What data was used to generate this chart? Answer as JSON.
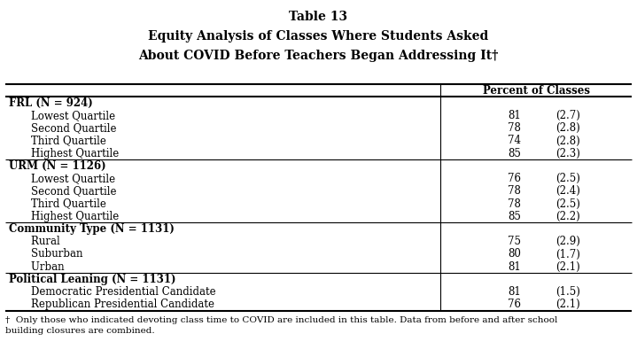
{
  "title_line1": "Table 13",
  "title_line2": "Equity Analysis of Classes Where Students Asked",
  "title_line3": "About COVID Before Teachers Began Addressing It†",
  "col_header": "Percent of Classes",
  "footnote": "†  Only those who indicated devoting class time to COVID are included in this table. Data from before and after school\nbuilding closures are combined.",
  "sections": [
    {
      "header": "FRL (N = 924)",
      "rows": [
        {
          "label": "    Lowest Quartile",
          "value": "81",
          "se": "(2.7)"
        },
        {
          "label": "    Second Quartile",
          "value": "78",
          "se": "(2.8)"
        },
        {
          "label": "    Third Quartile",
          "value": "74",
          "se": "(2.8)"
        },
        {
          "label": "    Highest Quartile",
          "value": "85",
          "se": "(2.3)"
        }
      ]
    },
    {
      "header": "URM (N = 1126)",
      "rows": [
        {
          "label": "    Lowest Quartile",
          "value": "76",
          "se": "(2.5)"
        },
        {
          "label": "    Second Quartile",
          "value": "78",
          "se": "(2.4)"
        },
        {
          "label": "    Third Quartile",
          "value": "78",
          "se": "(2.5)"
        },
        {
          "label": "    Highest Quartile",
          "value": "85",
          "se": "(2.2)"
        }
      ]
    },
    {
      "header": "Community Type (N = 1131)",
      "rows": [
        {
          "label": "    Rural",
          "value": "75",
          "se": "(2.9)"
        },
        {
          "label": "    Suburban",
          "value": "80",
          "se": "(1.7)"
        },
        {
          "label": "    Urban",
          "value": "81",
          "se": "(2.1)"
        }
      ]
    },
    {
      "header": "Political Leaning (N = 1131)",
      "rows": [
        {
          "label": "    Democratic Presidential Candidate",
          "value": "81",
          "se": "(1.5)"
        },
        {
          "label": "    Republican Presidential Candidate",
          "value": "76",
          "se": "(2.1)"
        }
      ]
    }
  ],
  "col_split": 0.695,
  "bg_color": "#ffffff",
  "font_family": "DejaVu Serif",
  "fontsize": 8.5,
  "title_fontsize": 10.0,
  "lw_thick": 1.5,
  "lw_thin": 0.8
}
